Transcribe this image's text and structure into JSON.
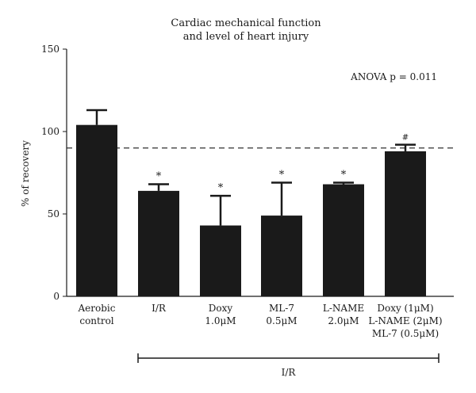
{
  "chart_data": {
    "type": "bar",
    "title_lines": [
      "Cardiac mechanical function",
      "and level of heart injury"
    ],
    "ylabel": "% of recovery",
    "xlabel": "",
    "ylim": [
      0,
      150
    ],
    "yticks": [
      0,
      50,
      100,
      150
    ],
    "categories": [
      [
        "Aerobic",
        "control"
      ],
      [
        "I/R"
      ],
      [
        "Doxy",
        "1.0μM"
      ],
      [
        "ML-7",
        "0.5μM"
      ],
      [
        "L-NAME",
        "2.0μM"
      ],
      [
        "Doxy (1μM)",
        "L-NAME (2μM)",
        "ML-7 (0.5μM)"
      ]
    ],
    "values": [
      104,
      64,
      43,
      49,
      68,
      88
    ],
    "errors": [
      9,
      4,
      18,
      20,
      1,
      4
    ],
    "significance": [
      "",
      "*",
      "*",
      "*",
      "*",
      "#"
    ],
    "reference_line": 90,
    "annotation": "ANOVA p = 0.011",
    "group_bracket": {
      "label": "I/R",
      "from_index": 1,
      "to_index": 5
    },
    "bar_color": "#1a1a1a",
    "grid": false
  }
}
